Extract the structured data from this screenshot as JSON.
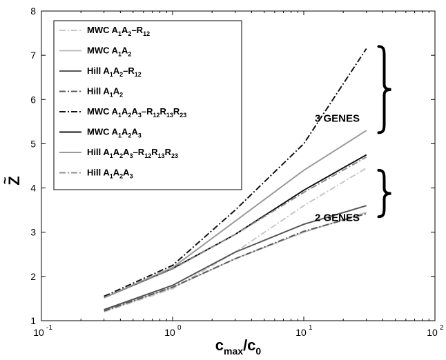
{
  "chart_data": {
    "type": "line",
    "x_scale": "log",
    "xlim": [
      0.1,
      100
    ],
    "ylim": [
      1,
      8
    ],
    "x_ticks": [
      0.1,
      1,
      10,
      100
    ],
    "x_tick_labels": [
      {
        "base": "10",
        "exp": "-1"
      },
      {
        "base": "10",
        "exp": "0"
      },
      {
        "base": "10",
        "exp": "1"
      },
      {
        "base": "10",
        "exp": "2"
      }
    ],
    "y_ticks": [
      1,
      2,
      3,
      4,
      5,
      6,
      7,
      8
    ],
    "y_tick_labels": [
      "1",
      "2",
      "3",
      "4",
      "5",
      "6",
      "7",
      "8"
    ],
    "xlabel": {
      "c": "c",
      "max": "max",
      "slash": "/c",
      "zero": "0"
    },
    "ylabel": "Z",
    "ylabel_accent": "~",
    "grid": false,
    "legend_position": "top-left",
    "series": [
      {
        "name": "MWC A1A2–R12",
        "label_parts": [
          [
            "MWC A",
            ""
          ],
          [
            "1",
            ""
          ],
          [
            "A",
            ""
          ],
          [
            "2",
            ""
          ],
          [
            "–R",
            ""
          ],
          [
            "12",
            ""
          ]
        ],
        "color": "#c8c8c8",
        "dash": "dashdot",
        "x": [
          0.3,
          1,
          3,
          10,
          30
        ],
        "y": [
          1.2,
          1.72,
          2.55,
          3.6,
          4.45
        ]
      },
      {
        "name": "MWC A1A2",
        "label_parts": [],
        "color": "#bdbdbd",
        "dash": "solid",
        "x": [
          0.3,
          1,
          3,
          10,
          30
        ],
        "y": [
          1.22,
          1.75,
          2.4,
          3.0,
          3.45
        ]
      },
      {
        "name": "Hill A1A2–R12",
        "label_parts": [],
        "color": "#555555",
        "dash": "solid",
        "x": [
          0.3,
          1,
          3,
          10,
          30
        ],
        "y": [
          1.25,
          1.8,
          2.55,
          3.18,
          3.6
        ]
      },
      {
        "name": "Hill A1A2",
        "label_parts": [],
        "color": "#5a5a5a",
        "dash": "dashdot",
        "x": [
          0.3,
          1,
          3,
          10,
          30
        ],
        "y": [
          1.22,
          1.76,
          2.4,
          3.02,
          3.42
        ]
      },
      {
        "name": "MWC A1A2A3–R12R13R23",
        "label_parts": [],
        "color": "#111111",
        "dash": "dashdot",
        "x": [
          0.3,
          1,
          3,
          10,
          30
        ],
        "y": [
          1.55,
          2.25,
          3.5,
          5.0,
          7.15
        ]
      },
      {
        "name": "MWC A1A2A3",
        "label_parts": [],
        "color": "#111111",
        "dash": "solid",
        "x": [
          0.3,
          1,
          3,
          10,
          30
        ],
        "y": [
          1.52,
          2.18,
          2.95,
          3.95,
          4.75
        ]
      },
      {
        "name": "Hill A1A2A3–R12R13R23",
        "label_parts": [],
        "color": "#9a9a9a",
        "dash": "solid",
        "x": [
          0.3,
          1,
          3,
          10,
          30
        ],
        "y": [
          1.52,
          2.2,
          3.25,
          4.4,
          5.3
        ]
      },
      {
        "name": "Hill A1A2A3",
        "label_parts": [],
        "color": "#8c8c8c",
        "dash": "dashdot",
        "x": [
          0.3,
          1,
          3,
          10,
          30
        ],
        "y": [
          1.52,
          2.17,
          2.95,
          3.9,
          4.7
        ]
      }
    ],
    "annotations": [
      {
        "text": "3 GENES",
        "x": 18,
        "y": 5.5
      },
      {
        "text": "2 GENES",
        "x": 18,
        "y": 3.25
      }
    ],
    "braces": [
      {
        "x": 33,
        "y_from": 5.25,
        "y_to": 7.2
      },
      {
        "x": 33,
        "y_from": 3.35,
        "y_to": 4.4
      }
    ]
  },
  "legend_labels": [
    [
      {
        "t": "MWC A"
      },
      {
        "t": "1",
        "s": 1
      },
      {
        "t": "A"
      },
      {
        "t": "2",
        "s": 1
      },
      {
        "t": "–R"
      },
      {
        "t": "12",
        "s": 1
      }
    ],
    [
      {
        "t": "MWC A"
      },
      {
        "t": "1",
        "s": 1
      },
      {
        "t": "A"
      },
      {
        "t": "2",
        "s": 1
      }
    ],
    [
      {
        "t": "Hill A"
      },
      {
        "t": "1",
        "s": 1
      },
      {
        "t": "A"
      },
      {
        "t": "2",
        "s": 1
      },
      {
        "t": "–R"
      },
      {
        "t": "12",
        "s": 1
      }
    ],
    [
      {
        "t": "Hill A"
      },
      {
        "t": "1",
        "s": 1
      },
      {
        "t": "A"
      },
      {
        "t": "2",
        "s": 1
      }
    ],
    [
      {
        "t": "MWC A"
      },
      {
        "t": "1",
        "s": 1
      },
      {
        "t": "A"
      },
      {
        "t": "2",
        "s": 1
      },
      {
        "t": "A"
      },
      {
        "t": "3",
        "s": 1
      },
      {
        "t": "–R"
      },
      {
        "t": "12",
        "s": 1
      },
      {
        "t": "R"
      },
      {
        "t": "13",
        "s": 1
      },
      {
        "t": "R"
      },
      {
        "t": "23",
        "s": 1
      }
    ],
    [
      {
        "t": "MWC A"
      },
      {
        "t": "1",
        "s": 1
      },
      {
        "t": "A"
      },
      {
        "t": "2",
        "s": 1
      },
      {
        "t": "A"
      },
      {
        "t": "3",
        "s": 1
      }
    ],
    [
      {
        "t": "Hill A"
      },
      {
        "t": "1",
        "s": 1
      },
      {
        "t": "A"
      },
      {
        "t": "2",
        "s": 1
      },
      {
        "t": "A"
      },
      {
        "t": "3",
        "s": 1
      },
      {
        "t": "–R"
      },
      {
        "t": "12",
        "s": 1
      },
      {
        "t": "R"
      },
      {
        "t": "13",
        "s": 1
      },
      {
        "t": "R"
      },
      {
        "t": "23",
        "s": 1
      }
    ],
    [
      {
        "t": "Hill A"
      },
      {
        "t": "1",
        "s": 1
      },
      {
        "t": "A"
      },
      {
        "t": "2",
        "s": 1
      },
      {
        "t": "A"
      },
      {
        "t": "3",
        "s": 1
      }
    ]
  ]
}
